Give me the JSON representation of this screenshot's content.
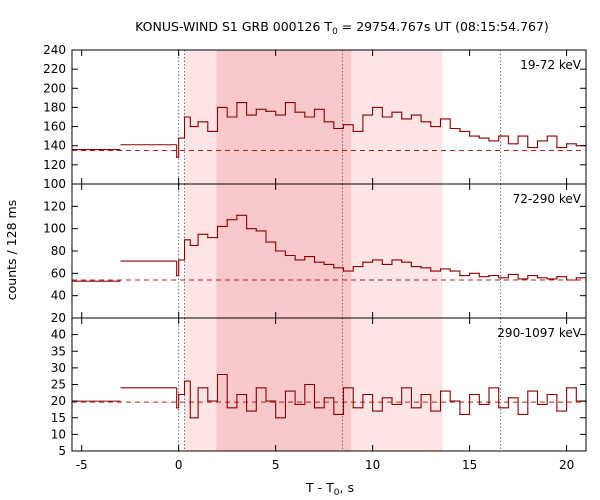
{
  "chart_data": {
    "type": "line",
    "title_main": "KONUS-WIND S1 GRB 000126 T",
    "title_sub": "0",
    "title_tail": " = 29754.767s UT (08:15:54.767)",
    "xlabel_main": "T - T",
    "xlabel_sub": "0",
    "xlabel_tail": ", s",
    "ylabel": "counts / 128 ms",
    "xlim": [
      -5.5,
      21
    ],
    "x_ticks": [
      -5,
      0,
      5,
      10,
      15,
      20
    ],
    "colors": {
      "line": "#8b0000",
      "background_dashed": "#b22222",
      "shade_light": "#fde5e5",
      "shade_dark": "#f9c8cb",
      "vline": "#555555"
    },
    "shaded_regions": [
      {
        "x0": 0.3,
        "x1": 13.6,
        "intensity": "light"
      },
      {
        "x0": 1.95,
        "x1": 8.9,
        "intensity": "dark"
      }
    ],
    "vertical_dotted_lines": [
      0.0,
      0.3,
      8.45,
      16.6
    ],
    "panels": [
      {
        "energy_band": "19-72 keV",
        "ylim": [
          100,
          240
        ],
        "y_ticks": [
          100,
          120,
          140,
          160,
          180,
          200,
          220,
          240
        ],
        "background": 135,
        "pre_trigger": [
          {
            "x0": -5.5,
            "x1": -3.0,
            "y": 136
          },
          {
            "x0": -3.0,
            "x1": -0.1,
            "y": 141
          }
        ],
        "lightcurve": [
          {
            "x": -0.1,
            "y": 128
          },
          {
            "x": 0.0,
            "y": 148
          },
          {
            "x": 0.3,
            "y": 170
          },
          {
            "x": 0.6,
            "y": 160
          },
          {
            "x": 1.0,
            "y": 165
          },
          {
            "x": 1.5,
            "y": 155
          },
          {
            "x": 2.0,
            "y": 180
          },
          {
            "x": 2.5,
            "y": 170
          },
          {
            "x": 3.0,
            "y": 185
          },
          {
            "x": 3.5,
            "y": 172
          },
          {
            "x": 4.0,
            "y": 178
          },
          {
            "x": 4.5,
            "y": 176
          },
          {
            "x": 5.0,
            "y": 172
          },
          {
            "x": 5.5,
            "y": 185
          },
          {
            "x": 6.0,
            "y": 175
          },
          {
            "x": 6.5,
            "y": 170
          },
          {
            "x": 7.0,
            "y": 178
          },
          {
            "x": 7.5,
            "y": 165
          },
          {
            "x": 8.0,
            "y": 158
          },
          {
            "x": 8.5,
            "y": 162
          },
          {
            "x": 9.0,
            "y": 155
          },
          {
            "x": 9.5,
            "y": 172
          },
          {
            "x": 10.0,
            "y": 180
          },
          {
            "x": 10.5,
            "y": 170
          },
          {
            "x": 11.0,
            "y": 175
          },
          {
            "x": 11.5,
            "y": 168
          },
          {
            "x": 12.0,
            "y": 172
          },
          {
            "x": 12.5,
            "y": 165
          },
          {
            "x": 13.0,
            "y": 160
          },
          {
            "x": 13.5,
            "y": 168
          },
          {
            "x": 14.0,
            "y": 158
          },
          {
            "x": 14.5,
            "y": 155
          },
          {
            "x": 15.0,
            "y": 150
          },
          {
            "x": 15.5,
            "y": 148
          },
          {
            "x": 16.0,
            "y": 145
          },
          {
            "x": 16.5,
            "y": 150
          },
          {
            "x": 17.0,
            "y": 142
          },
          {
            "x": 17.5,
            "y": 150
          },
          {
            "x": 18.0,
            "y": 138
          },
          {
            "x": 18.5,
            "y": 145
          },
          {
            "x": 19.0,
            "y": 150
          },
          {
            "x": 19.5,
            "y": 138
          },
          {
            "x": 20.0,
            "y": 142
          },
          {
            "x": 20.5,
            "y": 140
          },
          {
            "x": 21.0,
            "y": 140
          }
        ]
      },
      {
        "energy_band": "72-290 keV",
        "ylim": [
          20,
          140
        ],
        "y_ticks": [
          20,
          40,
          60,
          80,
          100,
          120
        ],
        "background": 54,
        "pre_trigger": [
          {
            "x0": -5.5,
            "x1": -3.0,
            "y": 53
          },
          {
            "x0": -3.0,
            "x1": -0.1,
            "y": 71
          }
        ],
        "lightcurve": [
          {
            "x": -0.1,
            "y": 58
          },
          {
            "x": 0.0,
            "y": 72
          },
          {
            "x": 0.3,
            "y": 90
          },
          {
            "x": 0.6,
            "y": 85
          },
          {
            "x": 1.0,
            "y": 95
          },
          {
            "x": 1.5,
            "y": 92
          },
          {
            "x": 2.0,
            "y": 102
          },
          {
            "x": 2.5,
            "y": 108
          },
          {
            "x": 3.0,
            "y": 112
          },
          {
            "x": 3.5,
            "y": 100
          },
          {
            "x": 4.0,
            "y": 98
          },
          {
            "x": 4.5,
            "y": 88
          },
          {
            "x": 5.0,
            "y": 80
          },
          {
            "x": 5.5,
            "y": 76
          },
          {
            "x": 6.0,
            "y": 72
          },
          {
            "x": 6.5,
            "y": 75
          },
          {
            "x": 7.0,
            "y": 70
          },
          {
            "x": 7.5,
            "y": 68
          },
          {
            "x": 8.0,
            "y": 65
          },
          {
            "x": 8.5,
            "y": 62
          },
          {
            "x": 9.0,
            "y": 66
          },
          {
            "x": 9.5,
            "y": 70
          },
          {
            "x": 10.0,
            "y": 72
          },
          {
            "x": 10.5,
            "y": 68
          },
          {
            "x": 11.0,
            "y": 72
          },
          {
            "x": 11.5,
            "y": 70
          },
          {
            "x": 12.0,
            "y": 66
          },
          {
            "x": 12.5,
            "y": 65
          },
          {
            "x": 13.0,
            "y": 62
          },
          {
            "x": 13.5,
            "y": 64
          },
          {
            "x": 14.0,
            "y": 62
          },
          {
            "x": 14.5,
            "y": 58
          },
          {
            "x": 15.0,
            "y": 60
          },
          {
            "x": 15.5,
            "y": 57
          },
          {
            "x": 16.0,
            "y": 58
          },
          {
            "x": 16.5,
            "y": 56
          },
          {
            "x": 17.0,
            "y": 59
          },
          {
            "x": 17.5,
            "y": 55
          },
          {
            "x": 18.0,
            "y": 58
          },
          {
            "x": 18.5,
            "y": 56
          },
          {
            "x": 19.0,
            "y": 55
          },
          {
            "x": 19.5,
            "y": 57
          },
          {
            "x": 20.0,
            "y": 54
          },
          {
            "x": 20.5,
            "y": 56
          },
          {
            "x": 21.0,
            "y": 56
          }
        ]
      },
      {
        "energy_band": "290-1097 keV",
        "ylim": [
          5,
          45
        ],
        "y_ticks": [
          5,
          10,
          15,
          20,
          25,
          30,
          35,
          40
        ],
        "background": 19.7,
        "pre_trigger": [
          {
            "x0": -5.5,
            "x1": -3.0,
            "y": 20
          },
          {
            "x0": -3.0,
            "x1": -0.1,
            "y": 24
          }
        ],
        "lightcurve": [
          {
            "x": -0.1,
            "y": 18
          },
          {
            "x": 0.0,
            "y": 22
          },
          {
            "x": 0.3,
            "y": 26
          },
          {
            "x": 0.6,
            "y": 15
          },
          {
            "x": 1.0,
            "y": 24
          },
          {
            "x": 1.5,
            "y": 20
          },
          {
            "x": 2.0,
            "y": 28
          },
          {
            "x": 2.5,
            "y": 18
          },
          {
            "x": 3.0,
            "y": 22
          },
          {
            "x": 3.5,
            "y": 17
          },
          {
            "x": 4.0,
            "y": 24
          },
          {
            "x": 4.5,
            "y": 20
          },
          {
            "x": 5.0,
            "y": 15
          },
          {
            "x": 5.5,
            "y": 23
          },
          {
            "x": 6.0,
            "y": 19
          },
          {
            "x": 6.5,
            "y": 25
          },
          {
            "x": 7.0,
            "y": 18
          },
          {
            "x": 7.5,
            "y": 21
          },
          {
            "x": 8.0,
            "y": 16
          },
          {
            "x": 8.5,
            "y": 24
          },
          {
            "x": 9.0,
            "y": 18
          },
          {
            "x": 9.5,
            "y": 22
          },
          {
            "x": 10.0,
            "y": 17
          },
          {
            "x": 10.5,
            "y": 21
          },
          {
            "x": 11.0,
            "y": 19
          },
          {
            "x": 11.5,
            "y": 24
          },
          {
            "x": 12.0,
            "y": 18
          },
          {
            "x": 12.5,
            "y": 22
          },
          {
            "x": 13.0,
            "y": 17
          },
          {
            "x": 13.5,
            "y": 23
          },
          {
            "x": 14.0,
            "y": 20
          },
          {
            "x": 14.5,
            "y": 16
          },
          {
            "x": 15.0,
            "y": 22
          },
          {
            "x": 15.5,
            "y": 19
          },
          {
            "x": 16.0,
            "y": 24
          },
          {
            "x": 16.5,
            "y": 18
          },
          {
            "x": 17.0,
            "y": 21
          },
          {
            "x": 17.5,
            "y": 16
          },
          {
            "x": 18.0,
            "y": 23
          },
          {
            "x": 18.5,
            "y": 19
          },
          {
            "x": 19.0,
            "y": 22
          },
          {
            "x": 19.5,
            "y": 17
          },
          {
            "x": 20.0,
            "y": 24
          },
          {
            "x": 20.5,
            "y": 20
          },
          {
            "x": 21.0,
            "y": 20
          }
        ]
      }
    ]
  }
}
